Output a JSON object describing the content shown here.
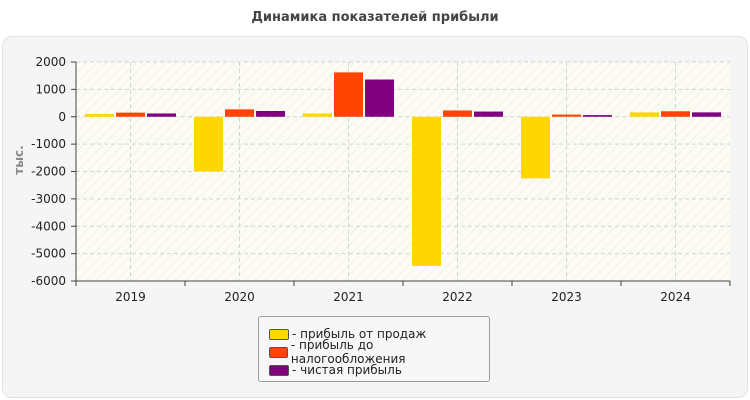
{
  "chart_data": {
    "type": "bar",
    "title": "Динамика показателей прибыли",
    "ylabel": "тыс.",
    "xlabel": "",
    "categories": [
      "2019",
      "2020",
      "2021",
      "2022",
      "2023",
      "2024"
    ],
    "ylim": [
      -6000,
      2000
    ],
    "yticks": [
      2000,
      1000,
      0,
      -1000,
      -2000,
      -3000,
      -4000,
      -5000,
      -6000
    ],
    "grid": true,
    "legend_position": "bottom",
    "series": [
      {
        "name": "- прибыль от продаж",
        "color": "#FFD700",
        "values": [
          100,
          -2000,
          120,
          -5450,
          -2250,
          160
        ]
      },
      {
        "name": "- прибыль до налогообложения",
        "color": "#FF4500",
        "values": [
          150,
          270,
          1620,
          230,
          80,
          200
        ]
      },
      {
        "name": "- чистая прибыль",
        "color": "#800080",
        "values": [
          120,
          210,
          1360,
          190,
          60,
          160
        ]
      }
    ]
  }
}
